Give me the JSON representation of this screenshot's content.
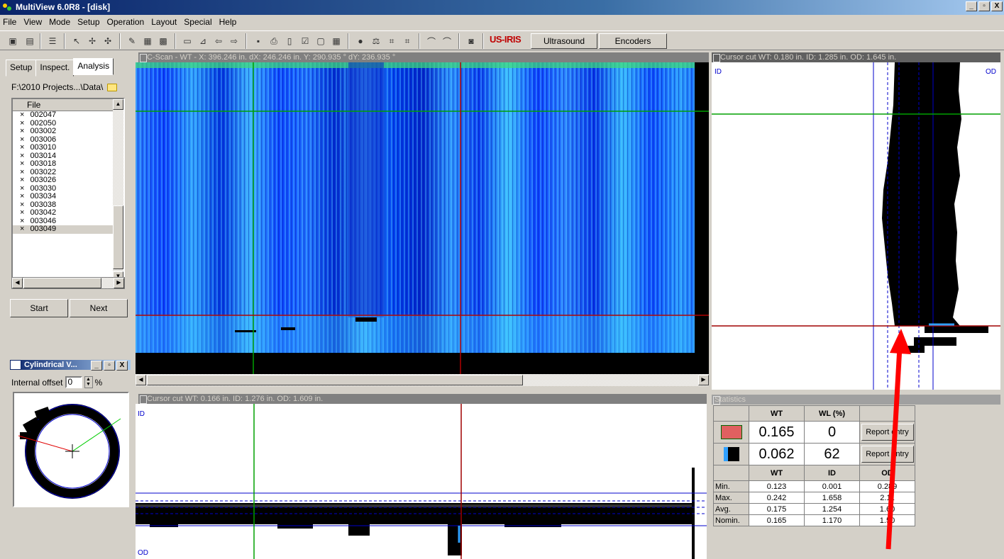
{
  "window": {
    "title": "MultiView 6.0R8 - [disk]",
    "min": "_",
    "max": "▫",
    "close": "X"
  },
  "menu": [
    "File",
    "View",
    "Mode",
    "Setup",
    "Operation",
    "Layout",
    "Special",
    "Help"
  ],
  "toolbar": {
    "brand": "US-IRIS",
    "ultrasound": "Ultrasound",
    "encoders": "Encoders"
  },
  "left": {
    "tabs": [
      "Setup",
      "Inspect.",
      "Analysis"
    ],
    "path": "F:\\2010 Projects...\\Data\\",
    "file_header": "File",
    "files": [
      "002047",
      "002050",
      "003002",
      "003006",
      "003010",
      "003014",
      "003018",
      "003022",
      "003026",
      "003030",
      "003034",
      "003038",
      "003042",
      "003046",
      "003049"
    ],
    "start": "Start",
    "next": "Next"
  },
  "cylindrical": {
    "title": "Cylindrical V...",
    "offset_label": "Internal offset",
    "offset_value": "0",
    "unit": "%"
  },
  "cscan": {
    "header": "C-Scan - WT  -  X: 396.246 in.  dX: 246.246 in.    Y: 290.935 °  dY: 236.935 °"
  },
  "vcut": {
    "header": "Cursor cut  WT: 0.180 in.  ID: 1.285 in.  OD: 1.645 in.",
    "id": "ID",
    "od": "OD"
  },
  "hcut": {
    "header": "Cursor cut  WT: 0.166 in.  ID: 1.276 in.  OD: 1.609 in.",
    "id": "ID",
    "od": "OD"
  },
  "stats": {
    "header": "Statistics",
    "col_wt": "WT",
    "col_wl": "WL (%)",
    "row1": {
      "wt": "0.165",
      "wl": "0",
      "btn": "Report entry"
    },
    "row2": {
      "wt": "0.062",
      "wl": "62",
      "btn": "Report entry"
    },
    "cols2": [
      "WT",
      "ID",
      "OD"
    ],
    "rows": [
      {
        "label": "Min.",
        "wt": "0.123",
        "id": "0.001",
        "od": "0.289"
      },
      {
        "label": "Max.",
        "wt": "0.242",
        "id": "1.658",
        "od": "2.11"
      },
      {
        "label": "Avg.",
        "wt": "0.175",
        "id": "1.254",
        "od": "1.60"
      },
      {
        "label": "Nomin.",
        "wt": "0.165",
        "id": "1.170",
        "od": "1.50"
      }
    ]
  },
  "colors": {
    "accent_title": "#0a246a",
    "cursor_green": "#008000",
    "cursor_red": "#a00000",
    "scan_blue": "#0a3cff",
    "arrow": "#ff0000"
  }
}
